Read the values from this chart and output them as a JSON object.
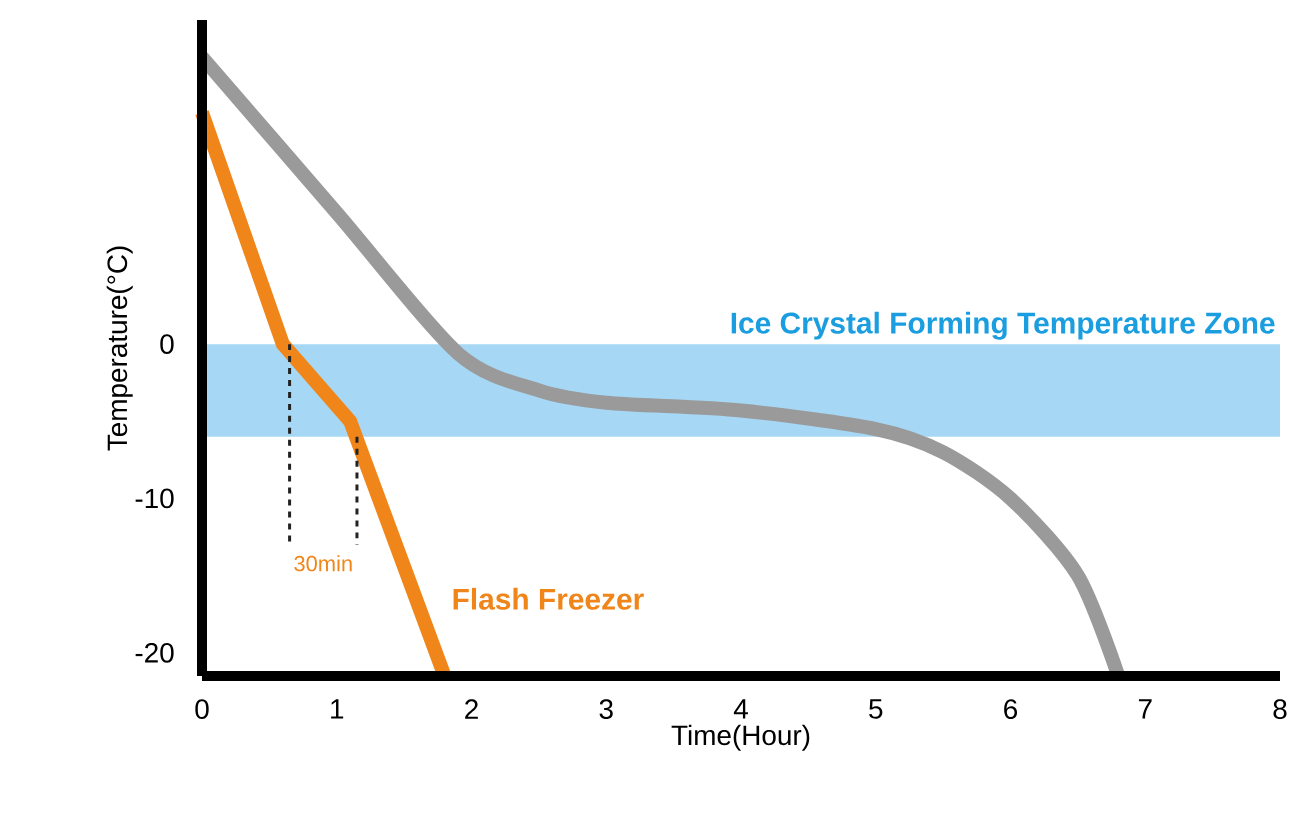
{
  "chart_data": {
    "type": "line",
    "xlabel": "Time(Hour)",
    "ylabel": "Temperature(°C)",
    "xlim": [
      0,
      8
    ],
    "ylim": [
      -21.5,
      21
    ],
    "xticks": [
      0,
      1,
      2,
      3,
      4,
      5,
      6,
      7,
      8
    ],
    "yticks": [
      -20,
      -10,
      0
    ],
    "grid": false,
    "series": [
      {
        "color": "#9a9a9a",
        "x": [
          0,
          1,
          1.9,
          2.5,
          3,
          4,
          5,
          5.5,
          6,
          6.5,
          6.8
        ],
        "values": [
          18.6,
          8.5,
          -0.6,
          -3,
          -3.8,
          -4.3,
          -5.5,
          -7,
          -10,
          -15,
          -21.5
        ]
      },
      {
        "name": "Flash Freezer",
        "color": "#f08519",
        "x": [
          0,
          0.6,
          1.1,
          1.8
        ],
        "values": [
          15,
          0,
          -5,
          -21.5
        ]
      },
      {
        "color": "#222222",
        "line_style": "dashed",
        "x": [
          0.65,
          0.65
        ],
        "values": [
          0,
          -13
        ]
      },
      {
        "color": "#222222",
        "line_style": "dashed",
        "x": [
          1.15,
          1.15
        ],
        "values": [
          -6,
          -13
        ]
      }
    ],
    "bands": [
      {
        "axis": "y",
        "from": -6,
        "to": 0,
        "label": "Ice Crystal Forming Temperature Zone",
        "color": "#a6d8f5"
      }
    ],
    "annotations": [
      "30min"
    ]
  }
}
